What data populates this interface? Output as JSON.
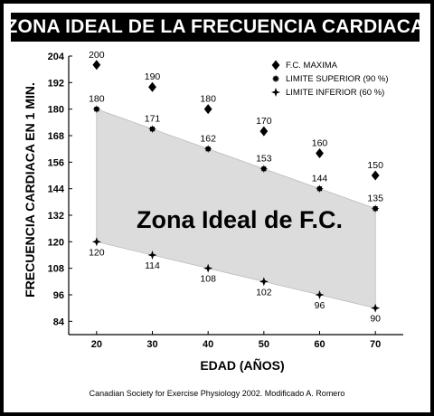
{
  "chart_data": {
    "type": "line",
    "title": "ZONA IDEAL DE LA FRECUENCIA CARDIACA",
    "xlabel": "EDAD (AÑOS)",
    "ylabel": "FRECUENCIA CARDIACA EN 1 MIN.",
    "x": [
      20,
      30,
      40,
      50,
      60,
      70
    ],
    "xlim": [
      15,
      75
    ],
    "ylim": [
      78,
      204
    ],
    "yticks": [
      84,
      96,
      108,
      120,
      132,
      144,
      156,
      168,
      180,
      192,
      204
    ],
    "grid": false,
    "legend_position": "top-right",
    "series": [
      {
        "name": "F.C. MAXIMA",
        "values": [
          200,
          190,
          180,
          170,
          160,
          150
        ],
        "marker": "diamond",
        "labels": [
          "200",
          "190",
          "180",
          "170",
          "160",
          "150"
        ]
      },
      {
        "name": "LIMITE SUPERIOR (90 %)",
        "values": [
          180,
          171,
          162,
          153,
          144,
          135
        ],
        "marker": "square-star",
        "labels": [
          "180",
          "171",
          "162",
          "153",
          "144",
          "135"
        ]
      },
      {
        "name": "LIMITE INFERIOR (60 %)",
        "values": [
          120,
          114,
          108,
          102,
          96,
          90
        ],
        "marker": "star",
        "labels": [
          "120",
          "114",
          "108",
          "102",
          "96",
          "90"
        ]
      }
    ],
    "shaded_band": {
      "label": "Zona Ideal de F.C.",
      "upper_series": 1,
      "lower_series": 2,
      "color": "#dcdcdc"
    }
  },
  "source_note": "Canadian Society for Exercise Physiology 2002. Modificado A. Romero"
}
